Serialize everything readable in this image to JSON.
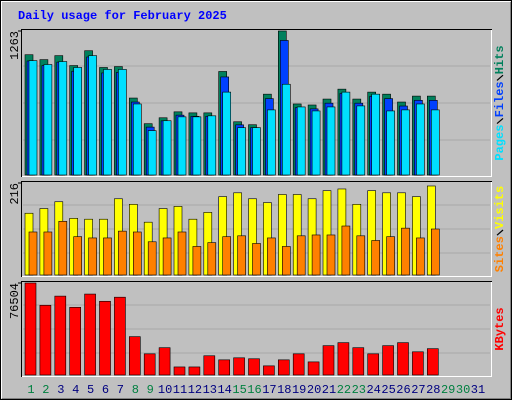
{
  "chart_data": [
    {
      "type": "bar",
      "title": "Daily usage for February 2025",
      "ylim": [
        0,
        1263
      ],
      "yticks": [
        1263
      ],
      "series": [
        {
          "name": "Hits",
          "color": "#00805c",
          "values": [
            1055,
            1012,
            1047,
            960,
            1090,
            943,
            951,
            675,
            450,
            502,
            554,
            545,
            545,
            908,
            467,
            441,
            709,
            1263,
            623,
            614,
            666,
            753,
            666,
            727,
            709,
            640,
            692,
            692,
            null,
            null,
            null
          ]
        },
        {
          "name": "Files",
          "color": "#0040ff",
          "values": [
            1000,
            960,
            990,
            910,
            1035,
            895,
            900,
            640,
            420,
            475,
            525,
            515,
            515,
            860,
            440,
            415,
            670,
            1180,
            590,
            580,
            630,
            715,
            630,
            690,
            670,
            605,
            655,
            655,
            null,
            null,
            null
          ]
        },
        {
          "name": "Pages",
          "color": "#00e0ff",
          "values": [
            1003,
            969,
            995,
            943,
            1047,
            926,
            926,
            623,
            389,
            476,
            510,
            510,
            519,
            727,
            415,
            415,
            571,
            796,
            597,
            562,
            597,
            727,
            606,
            709,
            562,
            571,
            623,
            571,
            null,
            null,
            null
          ]
        }
      ]
    },
    {
      "type": "bar",
      "ylim": [
        0,
        216
      ],
      "yticks": [
        216
      ],
      "series": [
        {
          "name": "Visits",
          "color": "#ffff00",
          "values": [
            145,
            156,
            172,
            133,
            131,
            131,
            179,
            166,
            124,
            156,
            161,
            131,
            147,
            184,
            193,
            179,
            170,
            189,
            189,
            179,
            198,
            202,
            166,
            198,
            193,
            193,
            184,
            209,
            null,
            null,
            null
          ]
        },
        {
          "name": "Sites",
          "color": "#ff8000",
          "values": [
            101,
            101,
            126,
            90,
            87,
            87,
            103,
            101,
            78,
            87,
            101,
            67,
            76,
            90,
            92,
            74,
            87,
            67,
            92,
            94,
            94,
            115,
            92,
            81,
            90,
            110,
            87,
            108,
            null,
            null,
            null
          ]
        }
      ]
    },
    {
      "type": "bar",
      "ylim": [
        0,
        76504
      ],
      "yticks": [
        76504
      ],
      "categories": [
        "1",
        "2",
        "3",
        "4",
        "5",
        "6",
        "7",
        "8",
        "9",
        "10",
        "11",
        "12",
        "13",
        "14",
        "15",
        "16",
        "17",
        "18",
        "19",
        "20",
        "21",
        "22",
        "23",
        "24",
        "25",
        "26",
        "27",
        "28",
        "29",
        "30",
        "31"
      ],
      "category_colors": [
        "#008040",
        "#008040",
        "#000080",
        "#000080",
        "#000080",
        "#000080",
        "#000080",
        "#008040",
        "#008040",
        "#000080",
        "#000080",
        "#000080",
        "#000080",
        "#000080",
        "#008040",
        "#008040",
        "#000080",
        "#000080",
        "#000080",
        "#000080",
        "#000080",
        "#008040",
        "#008040",
        "#000080",
        "#000080",
        "#000080",
        "#000080",
        "#000080",
        "#008040",
        "#008040",
        "#000080"
      ],
      "series": [
        {
          "name": "KBytes",
          "color": "#ff0000",
          "values": [
            76504,
            58000,
            65600,
            56300,
            67300,
            61300,
            64700,
            31900,
            17600,
            22700,
            6700,
            6700,
            16000,
            12600,
            14300,
            13500,
            7600,
            12600,
            17600,
            10900,
            24400,
            26900,
            22700,
            17600,
            24400,
            26900,
            19300,
            21900,
            null,
            null,
            null
          ]
        }
      ]
    }
  ]
}
